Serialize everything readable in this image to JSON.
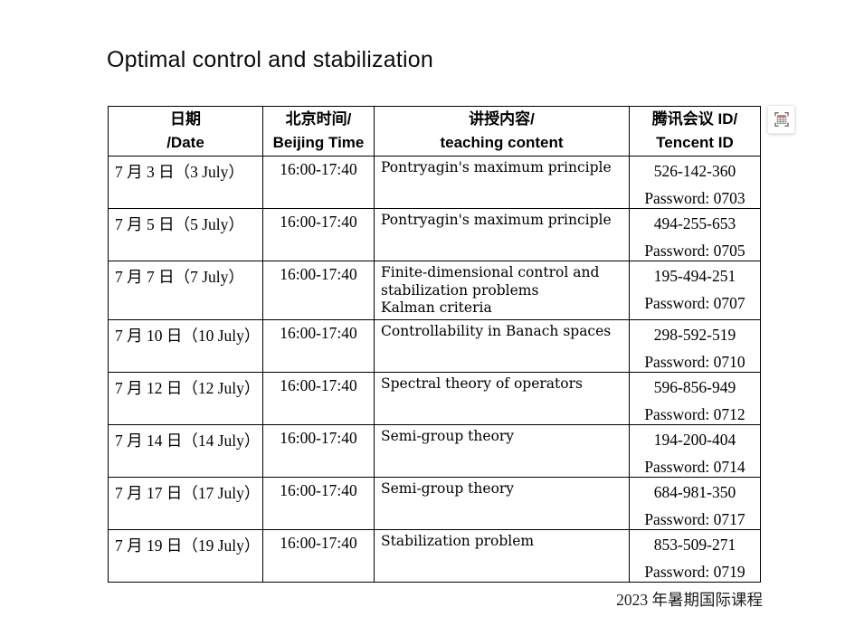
{
  "page": {
    "title": "Optimal control and stabilization",
    "footer": "2023 年暑期国际课程"
  },
  "overlay": {
    "table_capture_button": "table-capture"
  },
  "table": {
    "headers": [
      {
        "primary": "日期",
        "secondary": "/Date"
      },
      {
        "primary": "北京时间/",
        "secondary": "Beijing Time"
      },
      {
        "primary": "讲授内容/",
        "secondary": "teaching content"
      },
      {
        "primary": "腾讯会议 ID/",
        "secondary": "Tencent ID"
      }
    ],
    "rows": [
      {
        "date": "7 月 3 日（3 July）",
        "time": "16:00-17:40",
        "content": [
          "Pontryagin's maximum principle"
        ],
        "meeting_id": "526-142-360",
        "password": "Password: 0703"
      },
      {
        "date": "7 月 5 日（5 July）",
        "time": "16:00-17:40",
        "content": [
          "Pontryagin's maximum principle"
        ],
        "meeting_id": "494-255-653",
        "password": "Password: 0705"
      },
      {
        "date": "7 月 7 日（7 July）",
        "time": "16:00-17:40",
        "content": [
          "Finite-dimensional control and stabilization problems",
          "Kalman criteria"
        ],
        "meeting_id": "195-494-251",
        "password": "Password: 0707"
      },
      {
        "date": "7 月 10 日（10 July）",
        "time": "16:00-17:40",
        "content": [
          "Controllability in Banach spaces"
        ],
        "meeting_id": "298-592-519",
        "password": "Password: 0710"
      },
      {
        "date": "7 月 12 日（12 July）",
        "time": "16:00-17:40",
        "content": [
          "Spectral theory of operators"
        ],
        "meeting_id": "596-856-949",
        "password": "Password: 0712"
      },
      {
        "date": "7 月 14 日（14 July）",
        "time": "16:00-17:40",
        "content": [
          "Semi-group theory"
        ],
        "meeting_id": "194-200-404",
        "password": "Password: 0714"
      },
      {
        "date": "7 月 17 日（17 July）",
        "time": "16:00-17:40",
        "content": [
          "Semi-group theory"
        ],
        "meeting_id": "684-981-350",
        "password": "Password: 0717"
      },
      {
        "date": "7 月 19 日（19 July）",
        "time": "16:00-17:40",
        "content": [
          "Stabilization problem"
        ],
        "meeting_id": "853-509-271",
        "password": "Password: 0719"
      }
    ]
  }
}
